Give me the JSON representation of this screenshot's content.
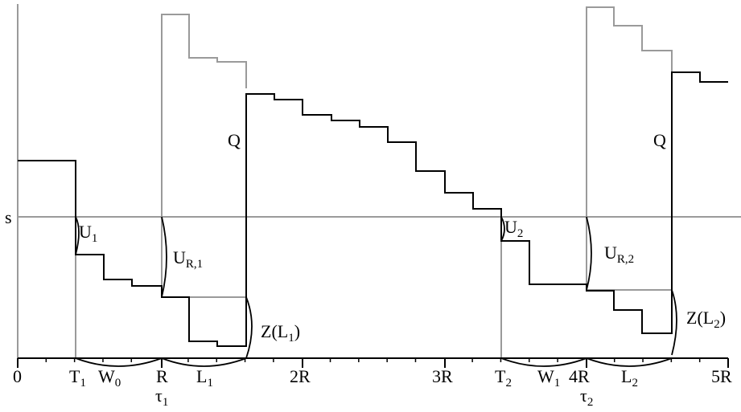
{
  "labels": {
    "s": "s",
    "u1": "U",
    "u1_sub": "1",
    "ur1": "U",
    "ur1_sub": "R,1",
    "q1": "Q",
    "z1": "Z(L",
    "z1_sub": "1",
    "z1_close": ")",
    "u2": "U",
    "u2_sub": "2",
    "ur2": "U",
    "ur2_sub": "R,2",
    "q2": "Q",
    "z2": "Z(L",
    "z2_sub": "2",
    "z2_close": ")"
  },
  "axis": {
    "zero": "0",
    "t1": "T",
    "t1_sub": "1",
    "w0": "W",
    "w0_sub": "0",
    "r": "R",
    "tau1": "τ",
    "tau1_sub": "1",
    "l1": "L",
    "l1_sub": "1",
    "r2": "2R",
    "r3": "3R",
    "t2": "T",
    "t2_sub": "2",
    "w1": "W",
    "w1_sub": "1",
    "r4": "4R",
    "tau2": "τ",
    "tau2_sub": "2",
    "l2": "L",
    "l2_sub": "2",
    "r5": "5R"
  },
  "colors": {
    "main": "#000000",
    "gray": "#9a9a9a"
  }
}
